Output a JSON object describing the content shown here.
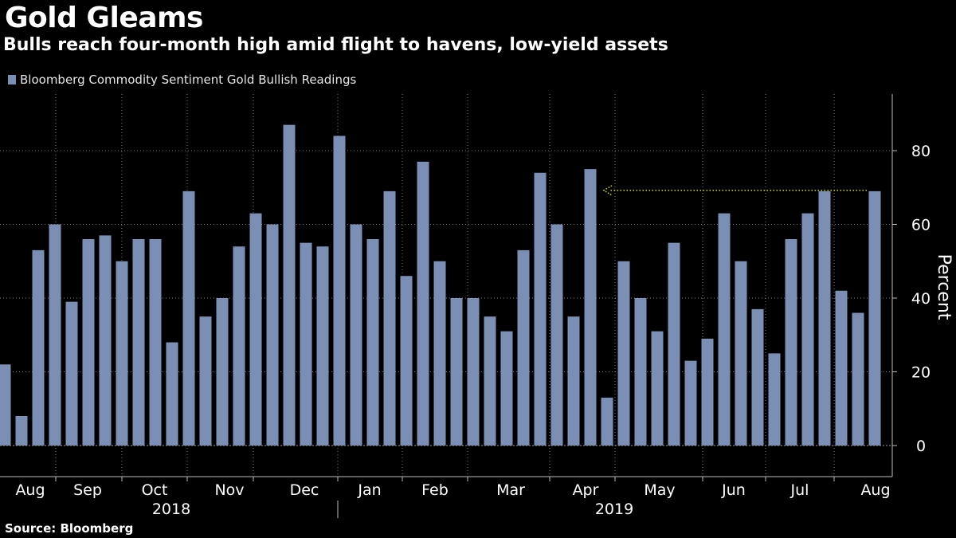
{
  "title": "Gold Gleams",
  "subtitle": "Bulls reach four-month high amid flight to havens, low-yield assets",
  "source": "Source: Bloomberg",
  "colors": {
    "background": "#000000",
    "bar": "#7b8fb4",
    "arrow": "#d4e000",
    "grid": "#777777"
  },
  "chart_data": {
    "type": "bar",
    "title": "Gold Gleams",
    "ylabel": "Percent",
    "ylim": [
      -8,
      96
    ],
    "yticks": [
      0,
      20,
      40,
      60,
      80
    ],
    "series": [
      {
        "name": "Bloomberg Commodity Sentiment Gold Bullish Readings",
        "values": [
          22,
          8,
          53,
          60,
          39,
          56,
          57,
          50,
          56,
          56,
          28,
          69,
          35,
          40,
          54,
          63,
          60,
          87,
          55,
          54,
          84,
          60,
          56,
          69,
          46,
          77,
          50,
          40,
          40,
          35,
          31,
          53,
          74,
          60,
          35,
          75,
          13,
          50,
          40,
          31,
          55,
          23,
          29,
          63,
          50,
          37,
          25,
          56,
          63,
          69,
          42,
          36,
          69
        ]
      }
    ],
    "month_labels": [
      "Aug",
      "Sep",
      "Oct",
      "Nov",
      "Dec",
      "Jan",
      "Feb",
      "Mar",
      "Apr",
      "May",
      "Jun",
      "Jul",
      "Aug"
    ],
    "year_labels": [
      "2018",
      "2019"
    ],
    "annotation": "Arrow pointing from the latest reading back to the April 2019 level",
    "grid": "horizontal dotted",
    "legend_position": "top-left"
  }
}
